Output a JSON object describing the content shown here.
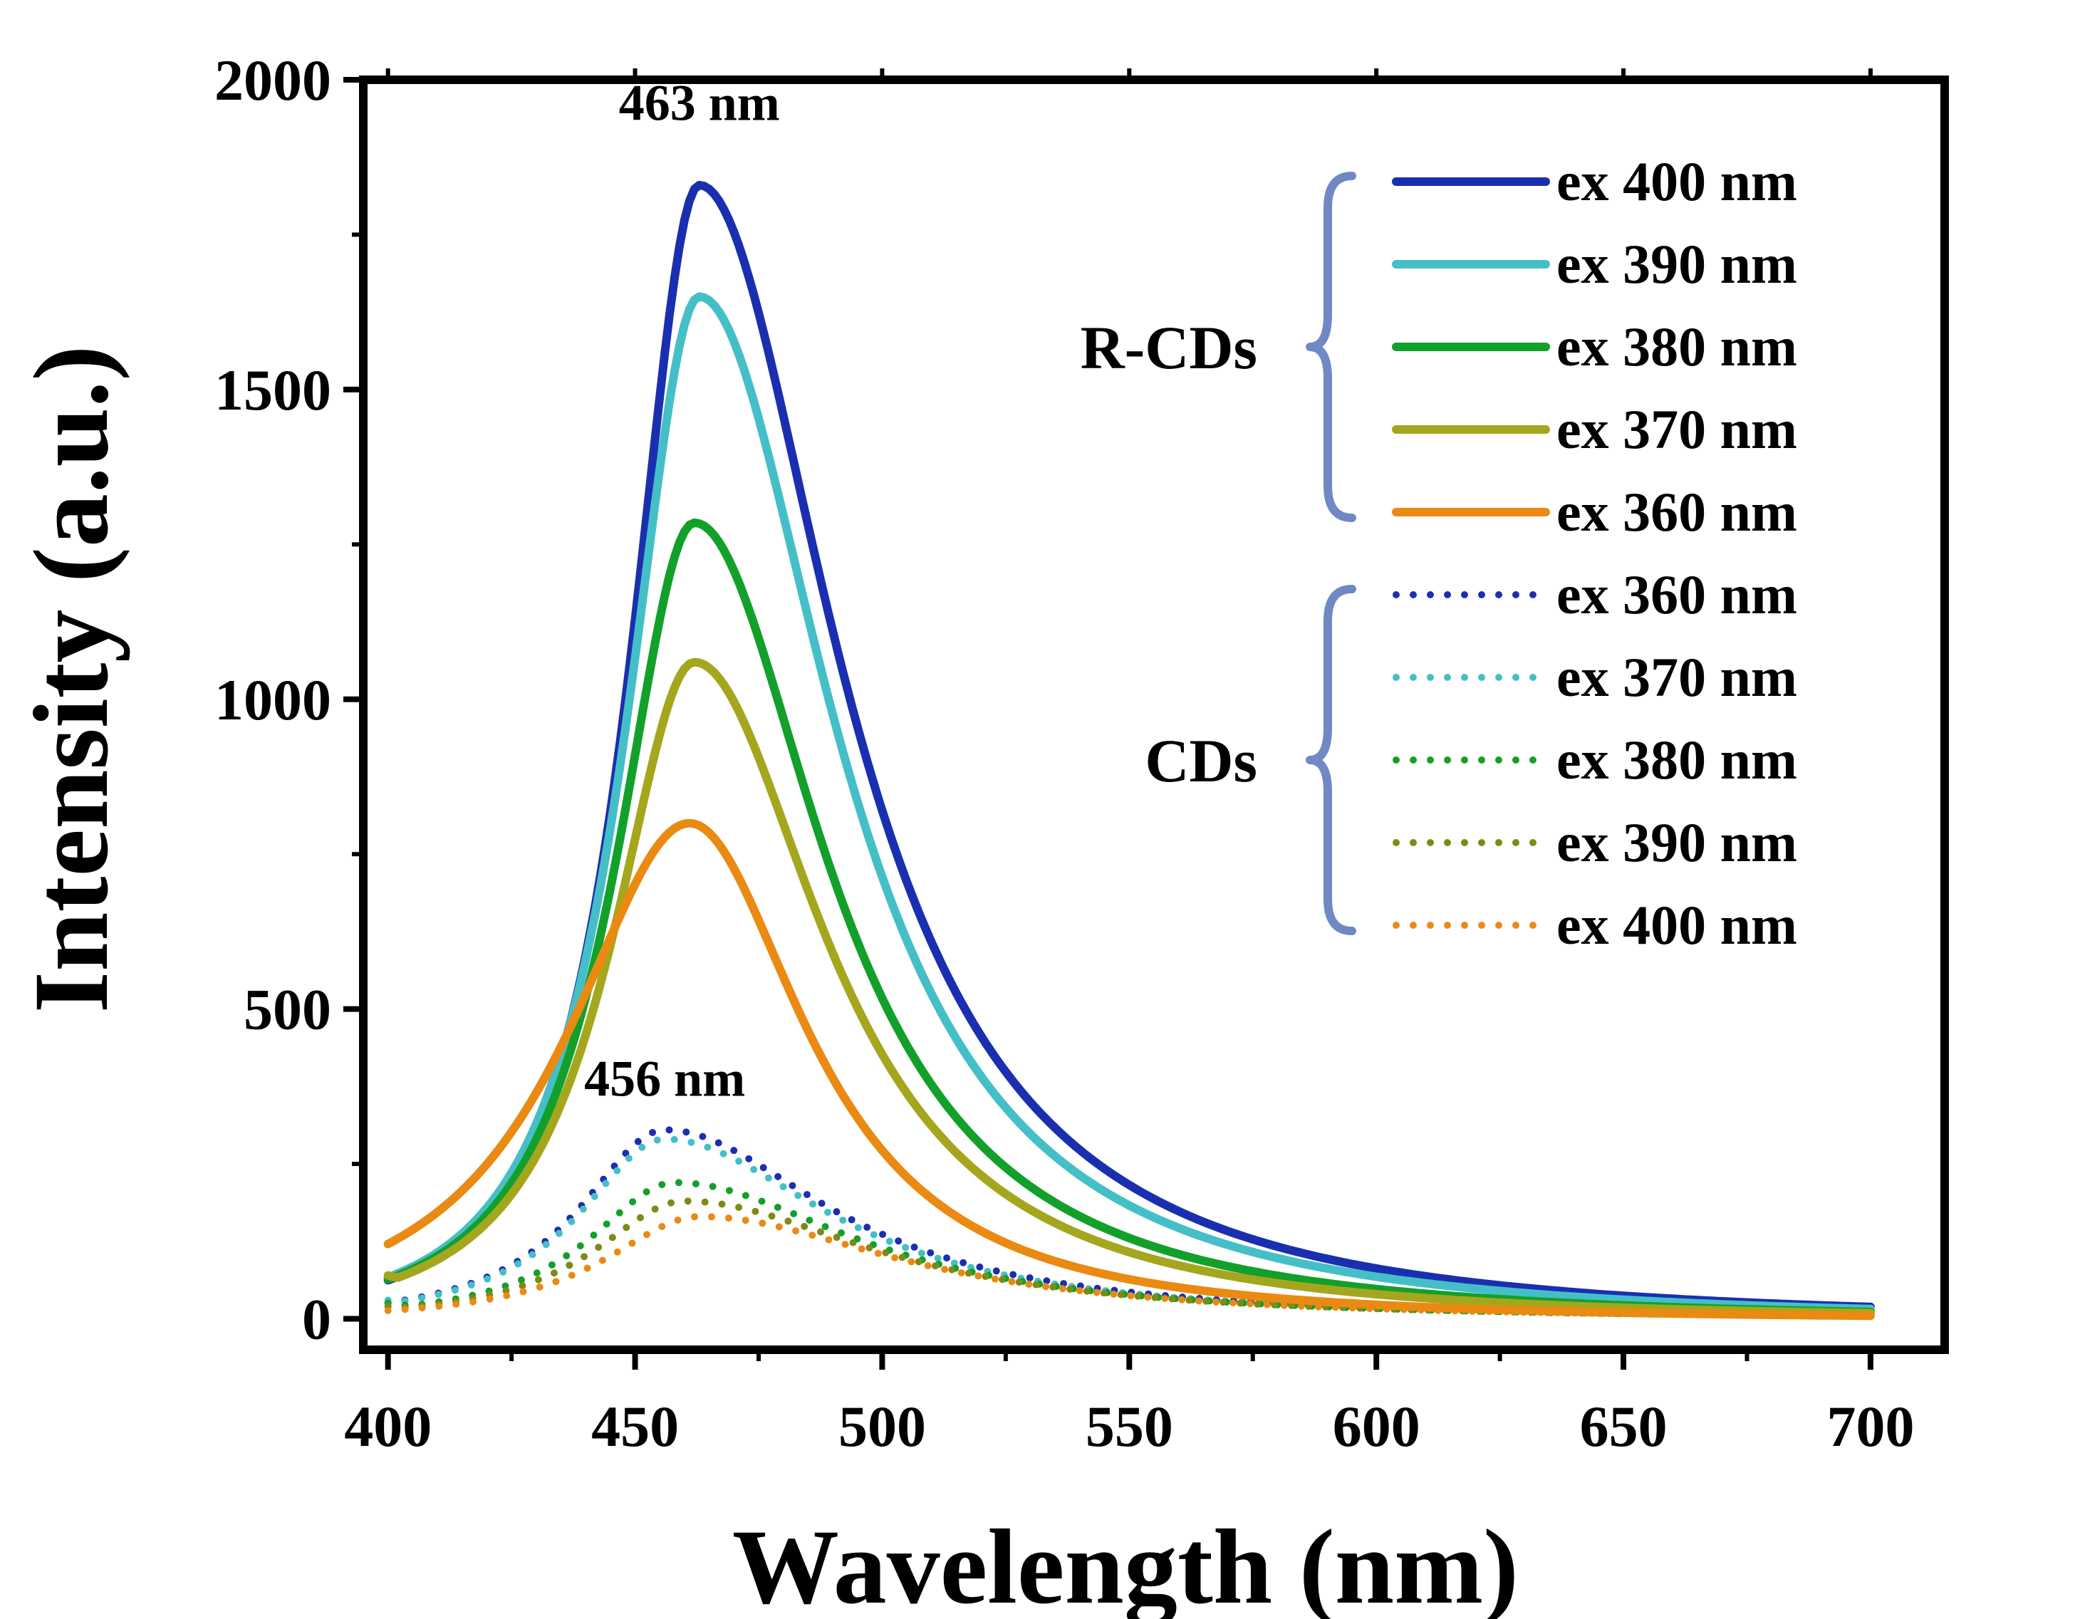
{
  "chart_data": {
    "type": "line",
    "title": "",
    "xlabel": "Wavelength (nm)",
    "ylabel": "Intensity (a.u.)",
    "xlim": [
      395,
      715
    ],
    "ylim": [
      -50,
      2000
    ],
    "xticks": [
      400,
      450,
      500,
      550,
      600,
      650,
      700
    ],
    "yticks": [
      0,
      500,
      1000,
      1500,
      2000
    ],
    "annotations": [
      {
        "text": "463 nm",
        "x": 463,
        "y": 1935
      },
      {
        "text": "456 nm",
        "x": 456,
        "y": 360
      }
    ],
    "legend_groups": [
      {
        "label": "R-CDs",
        "line_style": "solid"
      },
      {
        "label": "CDs",
        "line_style": "dotted"
      }
    ],
    "series": [
      {
        "name": "ex 400 nm",
        "group": "R-CDs",
        "style": "solid",
        "color": "#1a2fb0",
        "peak_x": 463,
        "peak_y": 1830,
        "width_left": 16,
        "width_right": 32,
        "start_y": 20
      },
      {
        "name": "ex 390 nm",
        "group": "R-CDs",
        "style": "solid",
        "color": "#45bfc7",
        "peak_x": 463,
        "peak_y": 1650,
        "width_left": 17,
        "width_right": 31,
        "start_y": 30
      },
      {
        "name": "ex 380 nm",
        "group": "R-CDs",
        "style": "solid",
        "color": "#12a02a",
        "peak_x": 462,
        "peak_y": 1285,
        "width_left": 18,
        "width_right": 30,
        "start_y": 45
      },
      {
        "name": "ex 370 nm",
        "group": "R-CDs",
        "style": "solid",
        "color": "#a4a71e",
        "peak_x": 462,
        "peak_y": 1060,
        "width_left": 19,
        "width_right": 30,
        "start_y": 70
      },
      {
        "name": "ex 360 nm",
        "group": "R-CDs",
        "style": "solid",
        "color": "#ea8a12",
        "peak_x": 461,
        "peak_y": 800,
        "width_left": 28,
        "width_right": 27,
        "start_y": 115
      },
      {
        "name": "ex 360 nm",
        "group": "CDs",
        "style": "dotted",
        "color": "#1a2fb0",
        "peak_x": 456,
        "peak_y": 305,
        "width_left": 20,
        "width_right": 38,
        "start_y": 25
      },
      {
        "name": "ex 370 nm",
        "group": "CDs",
        "style": "dotted",
        "color": "#45bfc7",
        "peak_x": 456,
        "peak_y": 290,
        "width_left": 20,
        "width_right": 38,
        "start_y": 30
      },
      {
        "name": "ex 380 nm",
        "group": "CDs",
        "style": "dotted",
        "color": "#12a02a",
        "peak_x": 458,
        "peak_y": 220,
        "width_left": 20,
        "width_right": 42,
        "start_y": 25
      },
      {
        "name": "ex 390 nm",
        "group": "CDs",
        "style": "dotted",
        "color": "#7f8a15",
        "peak_x": 460,
        "peak_y": 190,
        "width_left": 21,
        "width_right": 44,
        "start_y": 20
      },
      {
        "name": "ex 400 nm",
        "group": "CDs",
        "style": "dotted",
        "color": "#ea8a12",
        "peak_x": 463,
        "peak_y": 165,
        "width_left": 22,
        "width_right": 46,
        "start_y": 10
      }
    ]
  },
  "colors": {
    "brace": "#7089c4",
    "axis": "#000000"
  }
}
